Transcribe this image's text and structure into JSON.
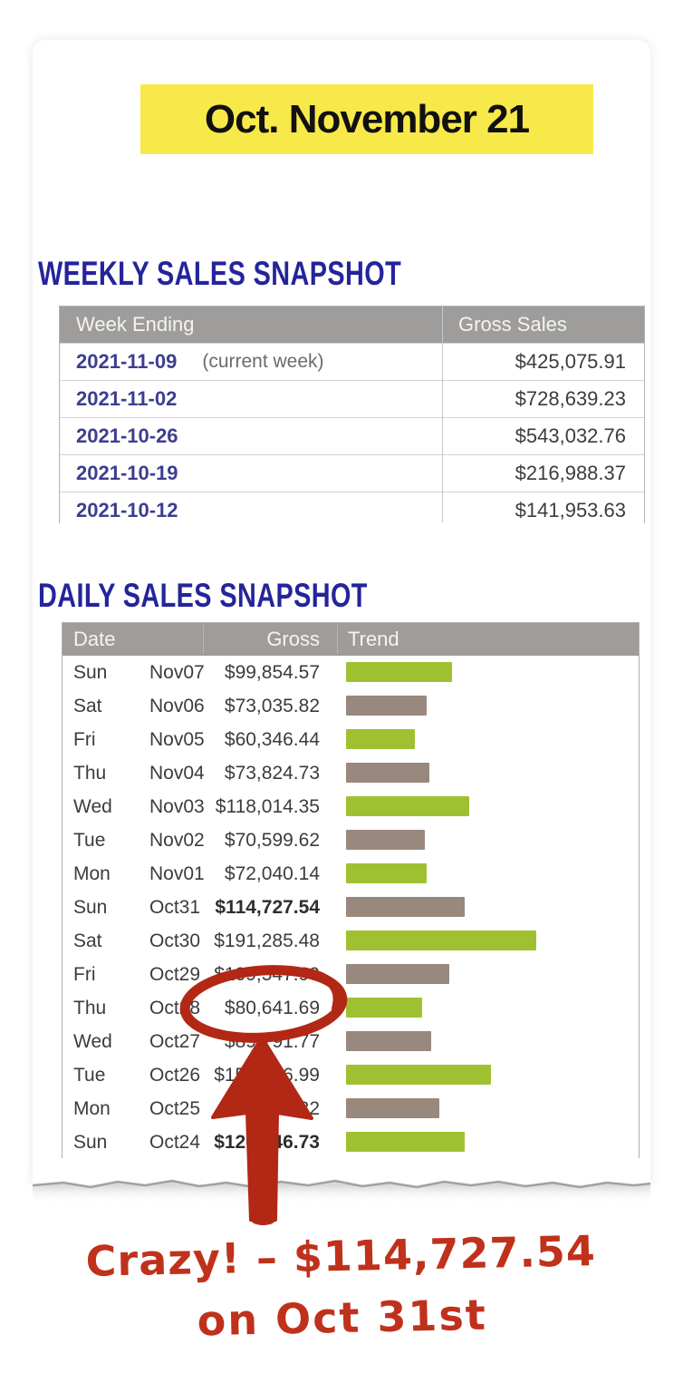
{
  "header": {
    "title": "Oct. November 21"
  },
  "weekly": {
    "heading": "WEEKLY SALES SNAPSHOT",
    "columns": [
      "Week Ending",
      "Gross Sales"
    ],
    "rows": [
      {
        "date": "2021-11-09",
        "note": "(current week)",
        "gross": "$425,075.91"
      },
      {
        "date": "2021-11-02",
        "note": "",
        "gross": "$728,639.23"
      },
      {
        "date": "2021-10-26",
        "note": "",
        "gross": "$543,032.76"
      },
      {
        "date": "2021-10-19",
        "note": "",
        "gross": "$216,988.37"
      },
      {
        "date": "2021-10-12",
        "note": "",
        "gross": "$141,953.63"
      }
    ]
  },
  "daily": {
    "heading": "DAILY SALES SNAPSHOT",
    "columns": [
      "Date",
      "Gross",
      "Trend"
    ],
    "rows": [
      {
        "day": "Sun",
        "date": "Nov07",
        "gross": "$99,854.57",
        "bold": false,
        "trend_width": 117,
        "trend_color": "green"
      },
      {
        "day": "Sat",
        "date": "Nov06",
        "gross": "$73,035.82",
        "bold": false,
        "trend_width": 89,
        "trend_color": "taupe"
      },
      {
        "day": "Fri",
        "date": "Nov05",
        "gross": "$60,346.44",
        "bold": false,
        "trend_width": 76,
        "trend_color": "green"
      },
      {
        "day": "Thu",
        "date": "Nov04",
        "gross": "$73,824.73",
        "bold": false,
        "trend_width": 92,
        "trend_color": "taupe"
      },
      {
        "day": "Wed",
        "date": "Nov03",
        "gross": "$118,014.35",
        "bold": false,
        "trend_width": 136,
        "trend_color": "green"
      },
      {
        "day": "Tue",
        "date": "Nov02",
        "gross": "$70,599.62",
        "bold": false,
        "trend_width": 87,
        "trend_color": "taupe"
      },
      {
        "day": "Mon",
        "date": "Nov01",
        "gross": "$72,040.14",
        "bold": false,
        "trend_width": 89,
        "trend_color": "green"
      },
      {
        "day": "Sun",
        "date": "Oct31",
        "gross": "$114,727.54",
        "bold": true,
        "trend_width": 131,
        "trend_color": "taupe"
      },
      {
        "day": "Sat",
        "date": "Oct30",
        "gross": "$191,285.48",
        "bold": false,
        "trend_width": 210,
        "trend_color": "green"
      },
      {
        "day": "Fri",
        "date": "Oct29",
        "gross": "$109,547.99",
        "bold": false,
        "trend_width": 114,
        "trend_color": "taupe"
      },
      {
        "day": "Thu",
        "date": "Oct28",
        "gross": "$80,641.69",
        "bold": false,
        "trend_width": 84,
        "trend_color": "green"
      },
      {
        "day": "Wed",
        "date": "Oct27",
        "gross": "$89,791.77",
        "bold": false,
        "trend_width": 94,
        "trend_color": "taupe"
      },
      {
        "day": "Tue",
        "date": "Oct26",
        "gross": "$151,246.99",
        "bold": false,
        "trend_width": 160,
        "trend_color": "green"
      },
      {
        "day": "Mon",
        "date": "Oct25",
        "gross": "$99,283.32",
        "bold": false,
        "trend_width": 103,
        "trend_color": "taupe"
      },
      {
        "day": "Sun",
        "date": "Oct24",
        "gross": "$126,346.73",
        "bold": true,
        "trend_width": 131,
        "trend_color": "green"
      }
    ]
  },
  "annotations": {
    "circled_value": "$80,641.69",
    "note_line1": "Crazy! – $114,727.54",
    "note_line2": "on Oct 31st"
  },
  "colors": {
    "highlight_yellow": "#f8e94b",
    "heading_navy": "#24249b",
    "table_header_gray": "#9e9d9b",
    "week_link_blue": "#3d3d91",
    "trend_green": "#9fc131",
    "trend_taupe": "#98887d",
    "annotation_red": "#b22815",
    "handwriting_red": "#c0311c"
  }
}
